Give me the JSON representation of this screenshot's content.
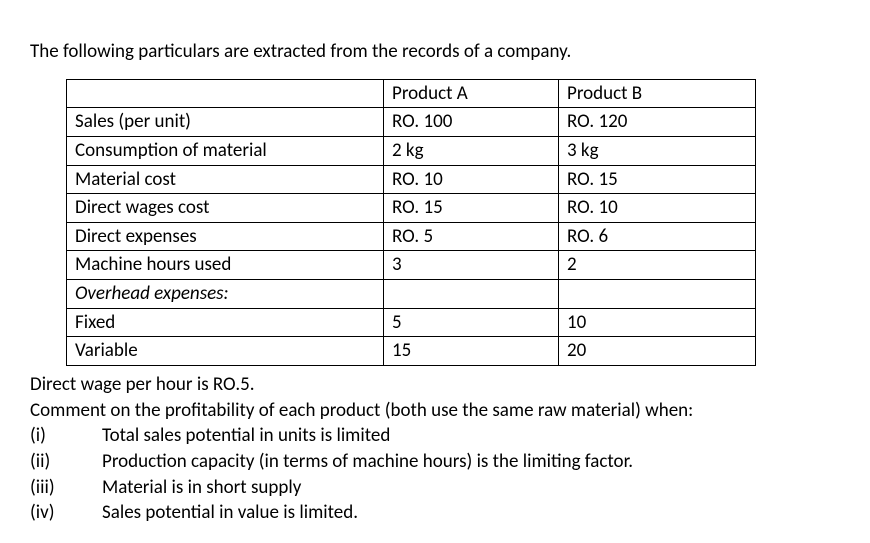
{
  "intro": "The following particulars are extracted from the records of a company.",
  "table": {
    "header": {
      "label": "",
      "colA": "Product A",
      "colB": "Product B"
    },
    "rows": [
      {
        "label": "Sales (per unit)",
        "a": "RO. 100",
        "b": "RO. 120"
      },
      {
        "label": "Consumption of material",
        "a": "2 kg",
        "b": "3 kg"
      },
      {
        "label": "Material cost",
        "a": "RO. 10",
        "b": "RO. 15"
      },
      {
        "label": "Direct wages cost",
        "a": "RO. 15",
        "b": "RO. 10"
      },
      {
        "label": "Direct expenses",
        "a": "RO. 5",
        "b": "RO. 6"
      },
      {
        "label": "Machine hours used",
        "a": "3",
        "b": "2"
      },
      {
        "label": "Overhead expenses:",
        "a": "",
        "b": "",
        "italic": true
      },
      {
        "label": "Fixed",
        "a": "5",
        "b": "10"
      },
      {
        "label": "Variable",
        "a": "15",
        "b": "20"
      }
    ]
  },
  "note1": "Direct wage per hour is RO.5.",
  "note2": "Comment on the profitability of each product (both use the same raw material) when:",
  "items": [
    {
      "num": "(i)",
      "text": "Total sales potential in units is limited"
    },
    {
      "num": "(ii)",
      "text": "Production capacity (in terms of machine hours) is the limiting factor."
    },
    {
      "num": "(iii)",
      "text": "Material is in short supply"
    },
    {
      "num": "(iv)",
      "text": "Sales potential in value is limited."
    }
  ]
}
